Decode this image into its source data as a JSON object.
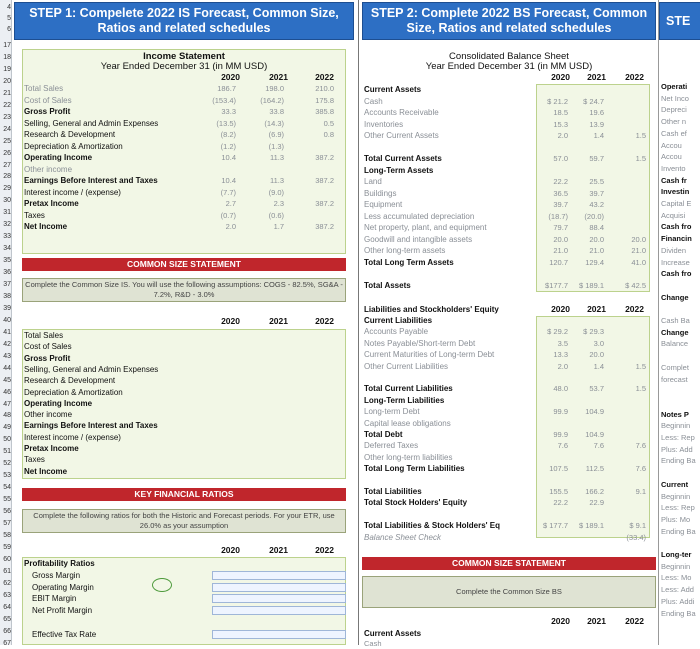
{
  "row_numbers": [
    "4",
    "5",
    "6",
    "17",
    "18",
    "19",
    "20",
    "21",
    "22",
    "23",
    "24",
    "25",
    "26",
    "27",
    "28",
    "29",
    "30",
    "31",
    "32",
    "33",
    "34",
    "35",
    "36",
    "37",
    "38",
    "39",
    "40",
    "41",
    "42",
    "43",
    "44",
    "45",
    "46",
    "47",
    "48",
    "49",
    "50",
    "51",
    "52",
    "53",
    "54",
    "55",
    "56",
    "57",
    "58",
    "59",
    "60",
    "61",
    "62",
    "63",
    "64",
    "65",
    "66",
    "67"
  ],
  "step1": {
    "banner_line1": "STEP 1: Compelete 2022 IS Forecast, Common Size,",
    "banner_line2": "Ratios and related schedules",
    "is_title": "Income Statement",
    "is_subtitle": "Year Ended December 31 (in MM USD)",
    "years": [
      "2020",
      "2021",
      "2022"
    ],
    "rows": [
      {
        "label": "Total Sales",
        "v2020": "186.7",
        "v2021": "198.0",
        "v2022": "210.0",
        "bold": false,
        "gray": true
      },
      {
        "label": "Cost of Sales",
        "v2020": "(153.4)",
        "v2021": "(164.2)",
        "v2022": "175.8",
        "bold": false,
        "gray": true
      },
      {
        "label": "Gross Profit",
        "v2020": "33.3",
        "v2021": "33.8",
        "v2022": "385.8",
        "bold": true,
        "gray": false
      },
      {
        "label": "Selling, General and Admin Expenses",
        "v2020": "(13.5)",
        "v2021": "(14.3)",
        "v2022": "0.5",
        "bold": false,
        "gray": false
      },
      {
        "label": "Research & Development",
        "v2020": "(8.2)",
        "v2021": "(6.9)",
        "v2022": "0.8",
        "bold": false,
        "gray": false
      },
      {
        "label": "Depreciation & Amortization",
        "v2020": "(1.2)",
        "v2021": "(1.3)",
        "v2022": "",
        "bold": false,
        "gray": false
      },
      {
        "label": "Operating Income",
        "v2020": "10.4",
        "v2021": "11.3",
        "v2022": "387.2",
        "bold": true,
        "gray": false
      },
      {
        "label": "Other income",
        "v2020": "",
        "v2021": "",
        "v2022": "",
        "bold": false,
        "gray": true
      },
      {
        "label": "Earnings Before Interest and Taxes",
        "v2020": "10.4",
        "v2021": "11.3",
        "v2022": "387.2",
        "bold": true,
        "gray": false
      },
      {
        "label": "Interest income / (expense)",
        "v2020": "(7.7)",
        "v2021": "(9.0)",
        "v2022": "",
        "bold": false,
        "gray": false
      },
      {
        "label": "Pretax Income",
        "v2020": "2.7",
        "v2021": "2.3",
        "v2022": "387.2",
        "bold": true,
        "gray": false
      },
      {
        "label": "Taxes",
        "v2020": "(0.7)",
        "v2021": "(0.6)",
        "v2022": "",
        "bold": false,
        "gray": false
      },
      {
        "label": "Net Income",
        "v2020": "2.0",
        "v2021": "1.7",
        "v2022": "387.2",
        "bold": true,
        "gray": false
      }
    ],
    "common_size_bar": "COMMON SIZE STATEMENT",
    "common_size_note": "Complete the Common Size IS. You will use the following assumptions: COGS - 82.5%, SG&A - 7.2%, R&D - 3.0%",
    "cs_rows": [
      {
        "label": "Total Sales",
        "bold": false
      },
      {
        "label": "Cost of Sales",
        "bold": false
      },
      {
        "label": "Gross Profit",
        "bold": true
      },
      {
        "label": "Selling, General and Admin Expenses",
        "bold": false
      },
      {
        "label": "Research & Development",
        "bold": false
      },
      {
        "label": "Depreciation & Amortization",
        "bold": false
      },
      {
        "label": "Operating Income",
        "bold": true
      },
      {
        "label": "Other income",
        "bold": false
      },
      {
        "label": "Earnings Before Interest and Taxes",
        "bold": true
      },
      {
        "label": "Interest income / (expense)",
        "bold": false
      },
      {
        "label": "Pretax Income",
        "bold": true
      },
      {
        "label": "Taxes",
        "bold": false
      },
      {
        "label": "Net Income",
        "bold": true
      }
    ],
    "kfr_bar": "KEY FINANCIAL RATIOS",
    "kfr_note": "Complete the following ratios for both the Historic and Forecast periods. For your ETR, use 26.0% as your assumption",
    "ratios": [
      {
        "label": "Profitability Ratios",
        "bold": true
      },
      {
        "label": "Gross Margin",
        "bold": false
      },
      {
        "label": "Operating Margin",
        "bold": false
      },
      {
        "label": "EBIT Margin",
        "bold": false
      },
      {
        "label": "Net Profit Margin",
        "bold": false
      },
      {
        "label": "",
        "bold": false
      },
      {
        "label": "Effective Tax Rate",
        "bold": false
      }
    ]
  },
  "step2": {
    "banner_line1": "STEP 2: Complete 2022 BS Forecast, Common",
    "banner_line2": "Size, Ratios and related schedules",
    "bs_title": "Consolidated Balance Sheet",
    "bs_subtitle": "Year Ended December 31 (in MM USD)",
    "years": [
      "2020",
      "2021",
      "2022"
    ],
    "rows": [
      {
        "label": "Current Assets",
        "v2020": "",
        "v2021": "",
        "v2022": "",
        "bold": true
      },
      {
        "label": "Cash",
        "v2020": "$ 21.2",
        "v2021": "$ 24.7",
        "v2022": "",
        "bold": false
      },
      {
        "label": "Accounts Receivable",
        "v2020": "18.5",
        "v2021": "19.6",
        "v2022": "",
        "bold": false
      },
      {
        "label": "Inventories",
        "v2020": "15.3",
        "v2021": "13.9",
        "v2022": "",
        "bold": false
      },
      {
        "label": "Other Current Assets",
        "v2020": "2.0",
        "v2021": "1.4",
        "v2022": "1.5",
        "bold": false
      },
      {
        "label": "",
        "v2020": "",
        "v2021": "",
        "v2022": "",
        "bold": false
      },
      {
        "label": "Total Current Assets",
        "v2020": "57.0",
        "v2021": "59.7",
        "v2022": "1.5",
        "bold": true
      },
      {
        "label": "Long-Term Assets",
        "v2020": "",
        "v2021": "",
        "v2022": "",
        "bold": true
      },
      {
        "label": "Land",
        "v2020": "22.2",
        "v2021": "25.5",
        "v2022": "",
        "bold": false
      },
      {
        "label": "Buildings",
        "v2020": "36.5",
        "v2021": "39.7",
        "v2022": "",
        "bold": false
      },
      {
        "label": "Equipment",
        "v2020": "39.7",
        "v2021": "43.2",
        "v2022": "",
        "bold": false
      },
      {
        "label": "Less accumulated depreciation",
        "v2020": "(18.7)",
        "v2021": "(20.0)",
        "v2022": "",
        "bold": false
      },
      {
        "label": "Net property, plant, and equipment",
        "v2020": "79.7",
        "v2021": "88.4",
        "v2022": "",
        "bold": false
      },
      {
        "label": "Goodwill and intangible assets",
        "v2020": "20.0",
        "v2021": "20.0",
        "v2022": "20.0",
        "bold": false
      },
      {
        "label": "Other long-term assets",
        "v2020": "21.0",
        "v2021": "21.0",
        "v2022": "21.0",
        "bold": false
      },
      {
        "label": "Total Long Term Assets",
        "v2020": "120.7",
        "v2021": "129.4",
        "v2022": "41.0",
        "bold": true
      },
      {
        "label": "",
        "v2020": "",
        "v2021": "",
        "v2022": "",
        "bold": false
      },
      {
        "label": "Total Assets",
        "v2020": "$177.7",
        "v2021": "$ 189.1",
        "v2022": "$ 42.5",
        "bold": true
      }
    ],
    "liab_header": "Liabilities and Stockholders' Equity",
    "liab_rows": [
      {
        "label": "Current Liabilities",
        "v2020": "",
        "v2021": "",
        "v2022": "",
        "bold": true
      },
      {
        "label": "Accounts Payable",
        "v2020": "$ 29.2",
        "v2021": "$ 29.3",
        "v2022": "",
        "bold": false
      },
      {
        "label": "Notes Payable/Short-term Debt",
        "v2020": "3.5",
        "v2021": "3.0",
        "v2022": "",
        "bold": false
      },
      {
        "label": "Current Maturities of Long-term Debt",
        "v2020": "13.3",
        "v2021": "20.0",
        "v2022": "",
        "bold": false
      },
      {
        "label": "Other Current Liabilities",
        "v2020": "2.0",
        "v2021": "1.4",
        "v2022": "1.5",
        "bold": false
      },
      {
        "label": "",
        "v2020": "",
        "v2021": "",
        "v2022": "",
        "bold": false
      },
      {
        "label": "Total Current Liabilities",
        "v2020": "48.0",
        "v2021": "53.7",
        "v2022": "1.5",
        "bold": true
      },
      {
        "label": "Long-Term Liabilities",
        "v2020": "",
        "v2021": "",
        "v2022": "",
        "bold": true
      },
      {
        "label": "Long-term Debt",
        "v2020": "99.9",
        "v2021": "104.9",
        "v2022": "",
        "bold": false
      },
      {
        "label": "Capital lease obligations",
        "v2020": "",
        "v2021": "",
        "v2022": "",
        "bold": false
      },
      {
        "label": "Total Debt",
        "v2020": "99.9",
        "v2021": "104.9",
        "v2022": "",
        "bold": true
      },
      {
        "label": "Deferred Taxes",
        "v2020": "7.6",
        "v2021": "7.6",
        "v2022": "7.6",
        "bold": false
      },
      {
        "label": "Other long-term liabilities",
        "v2020": "",
        "v2021": "",
        "v2022": "",
        "bold": false
      },
      {
        "label": "Total Long Term Liabilities",
        "v2020": "107.5",
        "v2021": "112.5",
        "v2022": "7.6",
        "bold": true
      },
      {
        "label": "",
        "v2020": "",
        "v2021": "",
        "v2022": "",
        "bold": false
      },
      {
        "label": "Total Liabilities",
        "v2020": "155.5",
        "v2021": "166.2",
        "v2022": "9.1",
        "bold": true
      },
      {
        "label": "Total Stock Holders' Equity",
        "v2020": "22.2",
        "v2021": "22.9",
        "v2022": "",
        "bold": true
      },
      {
        "label": "",
        "v2020": "",
        "v2021": "",
        "v2022": "",
        "bold": false
      },
      {
        "label": "Total Liabilities & Stock Holders' Eq",
        "v2020": "$ 177.7",
        "v2021": "$ 189.1",
        "v2022": "$ 9.1",
        "bold": true
      },
      {
        "label": "Balance Sheet Check",
        "v2020": "",
        "v2021": "",
        "v2022": "(33.4)",
        "bold": false
      }
    ],
    "cs_bar": "COMMON SIZE STATEMENT",
    "cs_note": "Complete the Common Size BS",
    "cs_years": [
      "2020",
      "2021",
      "2022"
    ],
    "cs_first": "Current Assets",
    "cs_cut": "Cash"
  },
  "step3": {
    "banner": "STE",
    "items": [
      "Operati",
      "Net Inco",
      "Depreci",
      "Other n",
      "Cash ef",
      "Accou",
      "Accou",
      "Invento",
      "Cash fr",
      "Investin",
      "Capital E",
      "Acquisi",
      "Cash fro",
      "Financin",
      "Dividen",
      "Increase",
      "Cash fro",
      "",
      "Change",
      "",
      "Cash Ba",
      "Change",
      "Balance",
      "",
      "Complet",
      "forecast",
      "",
      "",
      "Notes P",
      "Beginnin",
      "Less: Rep",
      "Plus: Add",
      "Ending Ba",
      "",
      "Current",
      "Beginnin",
      "Less: Rep",
      "Plus: Mo",
      "Ending Ba",
      "",
      "Long-ter",
      "Beginnin",
      "Less: Mo",
      "Less: Add",
      "Plus: Addi",
      "Ending Ba"
    ]
  }
}
